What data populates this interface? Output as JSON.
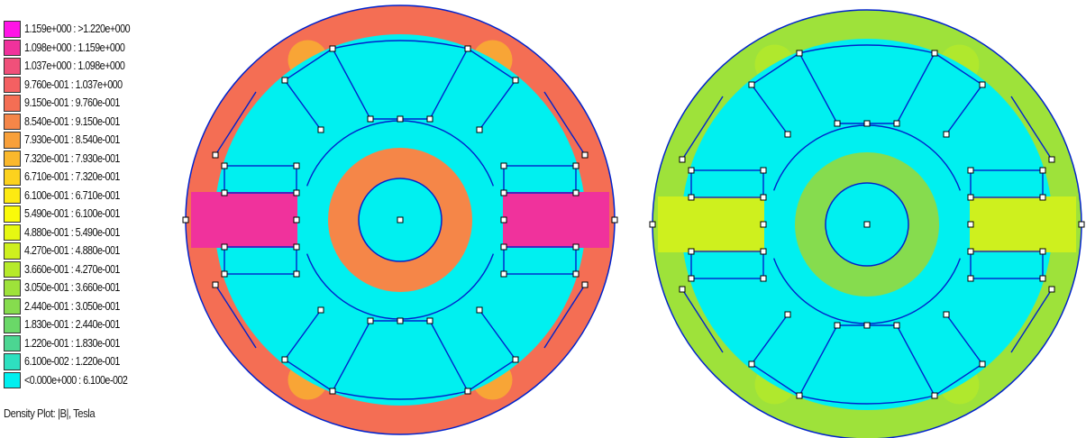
{
  "legend": {
    "items": [
      {
        "label": "1.159e+000 : >1.220e+000",
        "color": "#ff14e6"
      },
      {
        "label": "1.098e+000 : 1.159e+000",
        "color": "#f0329c"
      },
      {
        "label": "1.037e+000 : 1.098e+000",
        "color": "#f0507a"
      },
      {
        "label": "9.760e-001 : 1.037e+000",
        "color": "#f46062"
      },
      {
        "label": "9.150e-001 : 9.760e-001",
        "color": "#f46e54"
      },
      {
        "label": "8.540e-001 : 9.150e-001",
        "color": "#f58648"
      },
      {
        "label": "7.930e-001 : 8.540e-001",
        "color": "#f8a03a"
      },
      {
        "label": "7.320e-001 : 7.930e-001",
        "color": "#fab82c"
      },
      {
        "label": "6.710e-001 : 7.320e-001",
        "color": "#fcd21e"
      },
      {
        "label": "6.100e-001 : 6.710e-001",
        "color": "#fdea12"
      },
      {
        "label": "5.490e-001 : 6.100e-001",
        "color": "#fafa0a"
      },
      {
        "label": "4.880e-001 : 5.490e-001",
        "color": "#e6f812"
      },
      {
        "label": "4.270e-001 : 4.880e-001",
        "color": "#cef01e"
      },
      {
        "label": "3.660e-001 : 4.270e-001",
        "color": "#b6ea2a"
      },
      {
        "label": "3.050e-001 : 3.660e-001",
        "color": "#9ee23a"
      },
      {
        "label": "2.440e-001 : 3.050e-001",
        "color": "#86dc4e"
      },
      {
        "label": "1.830e-001 : 2.440e-001",
        "color": "#6ad868"
      },
      {
        "label": "1.220e-001 : 1.830e-001",
        "color": "#4cd692"
      },
      {
        "label": "6.100e-002 : 1.220e-001",
        "color": "#2ee0c0"
      },
      {
        "label": "<0.000e+000 : 6.100e-002",
        "color": "#00f0f0"
      }
    ],
    "caption": "Density Plot: |B|, Tesla"
  },
  "plots": [
    {
      "name": "left",
      "yoke_color": "#f46e54",
      "pole_color": "#f0329c",
      "rotor_ring_color": "#f58648",
      "hotspot_color": "#fab82c",
      "air_color": "#00f0f0",
      "outline_color": "#0022cc"
    },
    {
      "name": "right",
      "yoke_color": "#9ee23a",
      "pole_color": "#cef01e",
      "rotor_ring_color": "#86dc4e",
      "hotspot_color": "#b6ea2a",
      "air_color": "#00f0f0",
      "outline_color": "#0022cc"
    }
  ]
}
